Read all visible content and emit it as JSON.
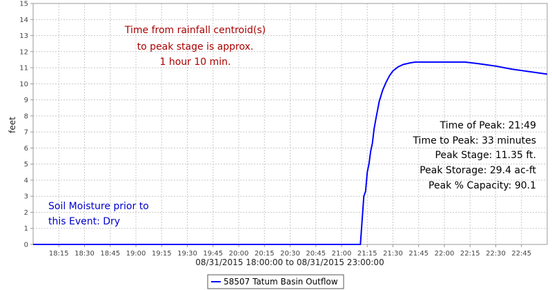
{
  "chart_data": {
    "type": "line",
    "title": "",
    "xlabel": "08/31/2015 18:00:00 to 08/31/2015 23:00:00",
    "ylabel": "feet",
    "x_range": [
      "18:00",
      "23:00"
    ],
    "ylim": [
      0,
      15
    ],
    "y_ticks": [
      0,
      1,
      2,
      3,
      4,
      5,
      6,
      7,
      8,
      9,
      10,
      11,
      12,
      13,
      14,
      15
    ],
    "x_tick_labels": [
      "18:15",
      "18:30",
      "18:45",
      "19:00",
      "19:15",
      "19:30",
      "19:45",
      "20:00",
      "20:15",
      "20:30",
      "20:45",
      "21:00",
      "21:15",
      "21:30",
      "21:45",
      "22:00",
      "22:15",
      "22:30",
      "22:45"
    ],
    "grid": true,
    "legend_placement": "bottom-center",
    "series": [
      {
        "name": "58507 Tatum Basin Outflow",
        "color": "#0000ff",
        "points": [
          [
            "18:00",
            0
          ],
          [
            "21:11",
            0
          ],
          [
            "21:12",
            1.5
          ],
          [
            "21:13",
            3.0
          ],
          [
            "21:14",
            3.3
          ],
          [
            "21:15",
            4.5
          ],
          [
            "21:16",
            5.0
          ],
          [
            "21:17",
            5.8
          ],
          [
            "21:18",
            6.3
          ],
          [
            "21:19",
            7.2
          ],
          [
            "21:20",
            7.8
          ],
          [
            "21:22",
            8.9
          ],
          [
            "21:24",
            9.6
          ],
          [
            "21:26",
            10.1
          ],
          [
            "21:28",
            10.5
          ],
          [
            "21:30",
            10.8
          ],
          [
            "21:33",
            11.05
          ],
          [
            "21:36",
            11.2
          ],
          [
            "21:40",
            11.3
          ],
          [
            "21:43",
            11.35
          ],
          [
            "21:49",
            11.35
          ],
          [
            "22:00",
            11.35
          ],
          [
            "22:12",
            11.35
          ],
          [
            "22:20",
            11.25
          ],
          [
            "22:30",
            11.1
          ],
          [
            "22:35",
            11.0
          ],
          [
            "22:40",
            10.9
          ],
          [
            "22:50",
            10.75
          ],
          [
            "23:00",
            10.6
          ]
        ]
      }
    ],
    "annotations": {
      "centroid": [
        "Time from rainfall centroid(s)",
        "to peak stage is approx.",
        "1 hour 10 min."
      ],
      "stats": [
        "Time of Peak: 21:49",
        "Time to Peak: 33 minutes",
        "Peak Stage: 11.35 ft.",
        "Peak Storage: 29.4 ac-ft",
        "Peak % Capacity: 90.1"
      ],
      "soil": [
        "Soil Moisture prior to",
        "this Event: Dry"
      ]
    },
    "colors": {
      "series": "#0000ff",
      "centroid_text": "#aa0000",
      "soil_text": "#0000cc",
      "grid": "#c8c8c8"
    }
  }
}
